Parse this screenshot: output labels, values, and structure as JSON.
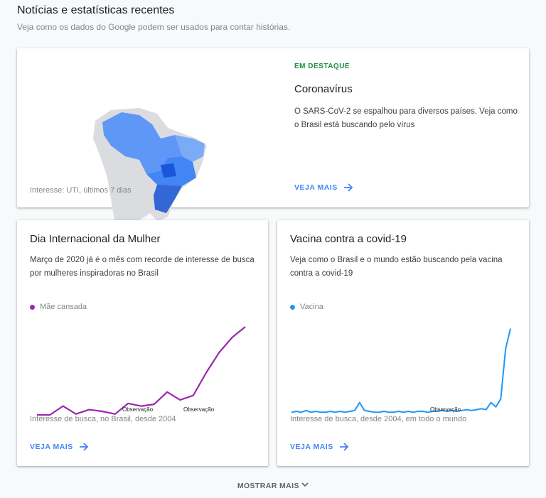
{
  "header": {
    "title": "Notícias e estatísticas recentes",
    "subtitle": "Veja como os dados do Google podem ser usados para contar histórias."
  },
  "featured": {
    "tag": "EM DESTAQUE",
    "title": "Coronavírus",
    "text": "O SARS-CoV-2 se espalhou para diversos países. Veja como o Brasil está buscando pelo vírus",
    "caption": "Interesse: UTI, últimos 7 dias",
    "link": "VEJA MAIS"
  },
  "cards": [
    {
      "title": "Dia Internacional da Mulher",
      "text": "Março de 2020 já é o mês com recorde de interesse de busca por mulheres inspiradoras no Brasil",
      "caption": "Interesse de busca, no Brasil, desde 2004",
      "link": "VEJA MAIS",
      "annotations": [
        "Observação",
        "Observação"
      ],
      "chart": {
        "type": "line",
        "ylim": [
          0,
          100
        ],
        "series": [
          {
            "name": "Mãe cansada",
            "color": "#9c27b0",
            "values": [
              0,
              0,
              10,
              1,
              6,
              4,
              1,
              13,
              10,
              12,
              26,
              17,
              22,
              48,
              71,
              88,
              100
            ]
          }
        ]
      }
    },
    {
      "title": "Vacina contra a covid-19",
      "text": "Veja como o Brasil e o mundo estão buscando pela vacina contra a covid-19",
      "caption": "Interesse de busca, desde 2004, em todo o mundo",
      "link": "VEJA MAIS",
      "annotations": [
        "Observação"
      ],
      "chart": {
        "type": "line",
        "ylim": [
          0,
          100
        ],
        "series": [
          {
            "name": "Vacina",
            "color": "#2196f3",
            "values": [
              3,
              4,
              3,
              5,
              3,
              4,
              3,
              3,
              4,
              3,
              4,
              3,
              4,
              5,
              14,
              5,
              4,
              3,
              3,
              4,
              3,
              3,
              4,
              3,
              4,
              3,
              4,
              4,
              3,
              4,
              4,
              5,
              4,
              5,
              4,
              5,
              6,
              5,
              6,
              7,
              6,
              14,
              9,
              18,
              75,
              98
            ]
          }
        ]
      }
    }
  ],
  "more": "MOSTRAR MAIS"
}
